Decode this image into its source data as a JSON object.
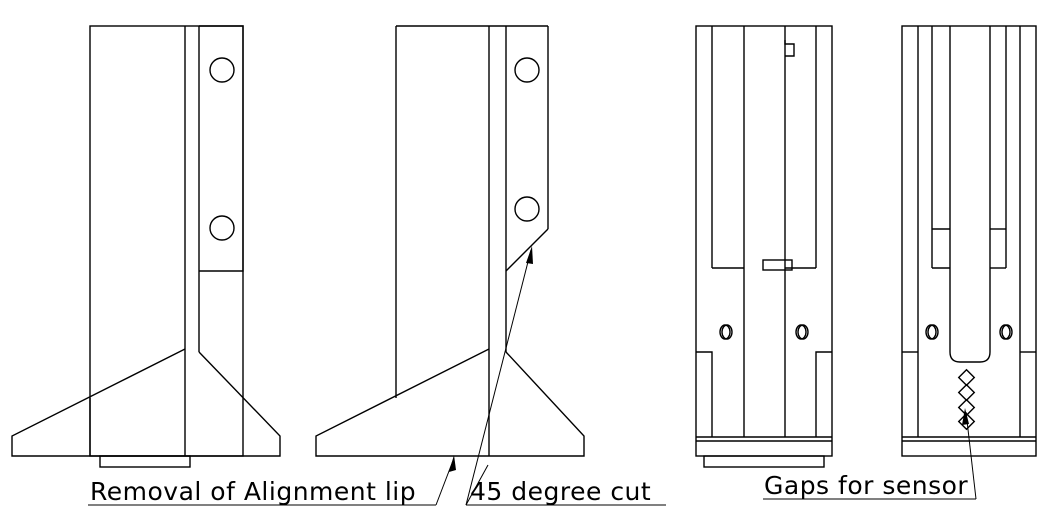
{
  "annotations": {
    "removal": "Removal of Alignment lip",
    "cut": "45 degree cut",
    "gaps": "Gaps for sensor"
  }
}
